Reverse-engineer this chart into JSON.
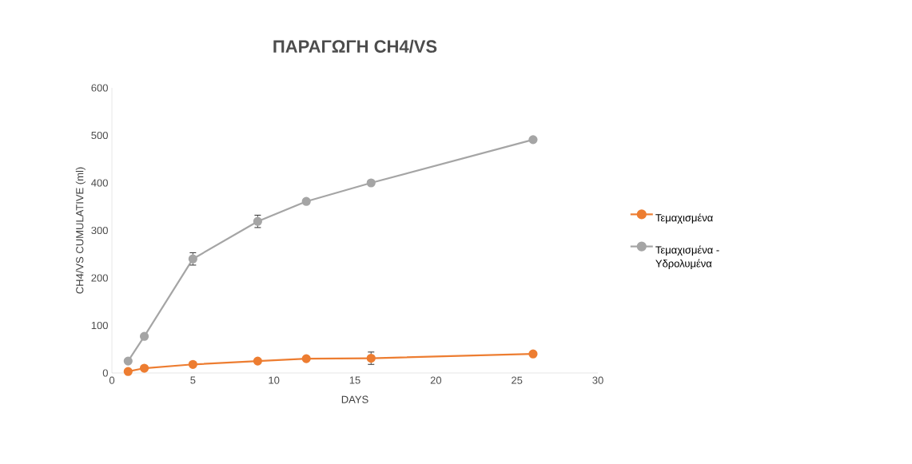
{
  "chart_data": {
    "type": "line",
    "title": "ΠΑΡΑΓΩΓΗ CH4/VS",
    "xlabel": "DAYS",
    "ylabel": "CH4/VS CUMULATIVE (ml)",
    "x": [
      1,
      2,
      5,
      9,
      12,
      16,
      26
    ],
    "series": [
      {
        "name": "Τεμαχισμένα",
        "color": "#ed7d31",
        "values": [
          3,
          10,
          18,
          25,
          30,
          31,
          40
        ],
        "errors": [
          null,
          null,
          null,
          null,
          null,
          13,
          null
        ]
      },
      {
        "name": "Τεμαχισμένα - Υδρολυμένα",
        "color": "#a5a5a5",
        "values": [
          25,
          77,
          240,
          319,
          361,
          400,
          491
        ],
        "errors": [
          null,
          null,
          13,
          13,
          null,
          null,
          null
        ]
      }
    ],
    "xlim": [
      0,
      30
    ],
    "xticks": [
      0,
      5,
      10,
      15,
      20,
      25,
      30
    ],
    "ylim": [
      0,
      600
    ],
    "yticks": [
      0,
      100,
      200,
      300,
      400,
      500,
      600
    ],
    "grid": false,
    "legend": "right",
    "marker": "circle",
    "line_style": "solid"
  }
}
